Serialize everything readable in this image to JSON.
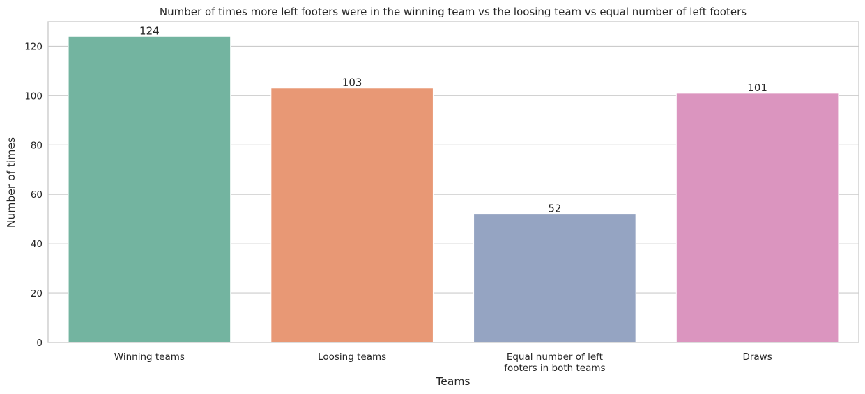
{
  "chart_data": {
    "type": "bar",
    "title": "Number of times more left footers were in the winning team vs the loosing team vs equal number of left footers",
    "xlabel": "Teams",
    "ylabel": "Number of times",
    "categories": [
      "Winning teams",
      "Loosing teams",
      "Equal number of left footers in both teams",
      "Draws"
    ],
    "category_lines": [
      [
        "Winning teams"
      ],
      [
        "Loosing teams"
      ],
      [
        "Equal number of left",
        "footers in both teams"
      ],
      [
        "Draws"
      ]
    ],
    "values": [
      124,
      103,
      52,
      101
    ],
    "data_labels": [
      "124",
      "103",
      "52",
      "101"
    ],
    "colors": [
      "#73b4a0",
      "#e89875",
      "#95a4c2",
      "#db95bf"
    ],
    "ylim": [
      0,
      130
    ],
    "yticks": [
      0,
      20,
      40,
      60,
      80,
      100,
      120
    ],
    "grid": "horizontal",
    "legend": "none"
  }
}
